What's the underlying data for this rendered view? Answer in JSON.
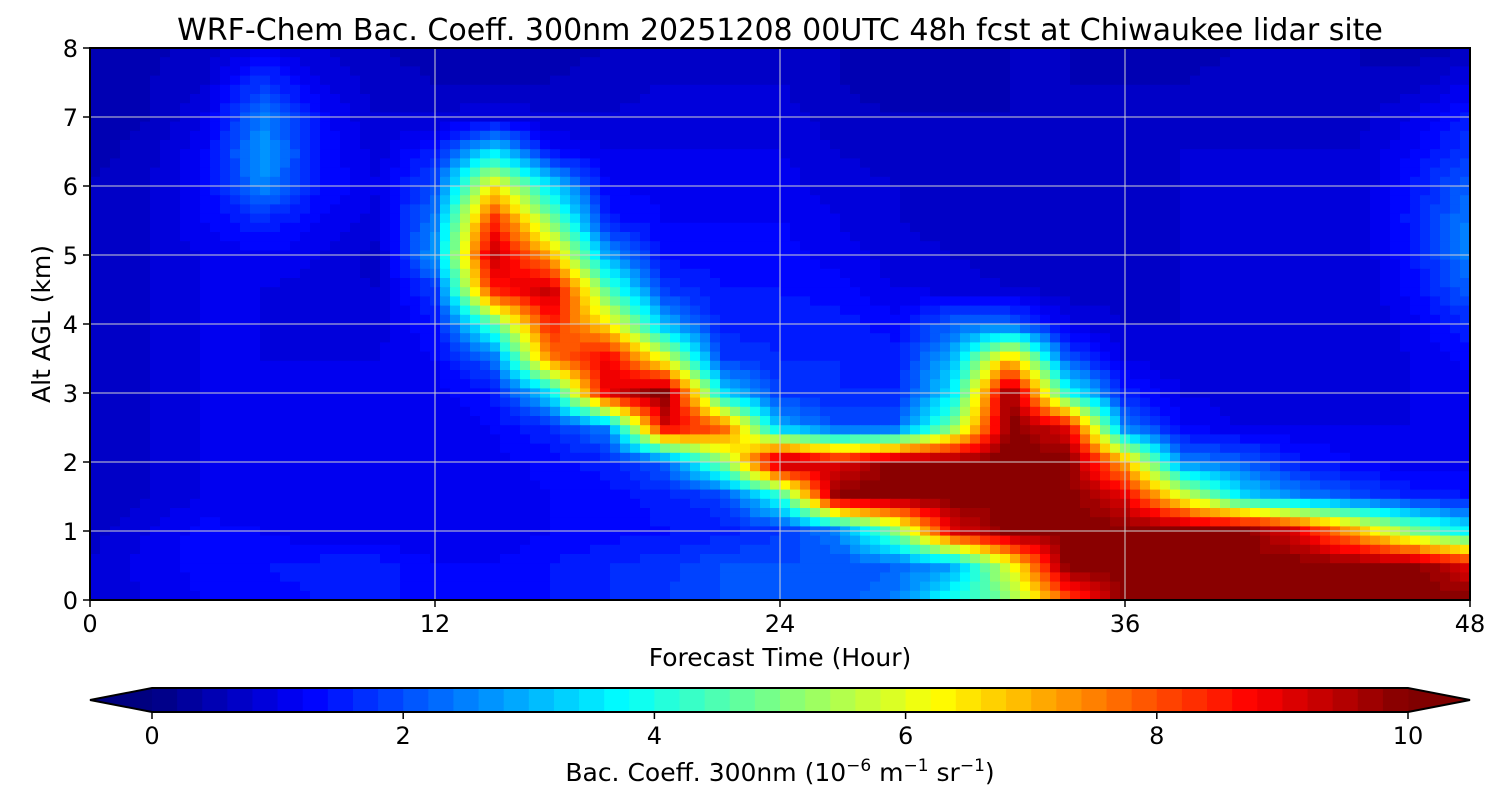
{
  "chart_data": {
    "type": "heatmap",
    "title": "WRF-Chem Bac. Coeff. 300nm  20251208 00UTC 48h fcst at Chiwaukee lidar site",
    "xlabel": "Forecast Time (Hour)",
    "ylabel": "Alt AGL (km)",
    "xlim": [
      0,
      48
    ],
    "ylim": [
      0,
      8
    ],
    "x_ticks": [
      "0",
      "12",
      "24",
      "36",
      "48"
    ],
    "y_ticks": [
      "0",
      "1",
      "2",
      "3",
      "4",
      "5",
      "6",
      "7",
      "8"
    ],
    "grid": true,
    "colormap": "jet",
    "colorbar": {
      "label_prefix": "Bac. Coeff. 300nm  (10",
      "label_exp1": "−6",
      "label_mid": " m",
      "label_exp2": "−1",
      "label_mid2": " sr",
      "label_exp3": "−1",
      "label_suffix": ")",
      "range": [
        0,
        10
      ],
      "levels": 50,
      "extend": "both",
      "ticks": [
        "0",
        "2",
        "4",
        "6",
        "8",
        "10"
      ]
    },
    "x_hours": [
      0,
      2,
      4,
      6,
      8,
      10,
      12,
      14,
      16,
      18,
      20,
      22,
      24,
      26,
      28,
      30,
      32,
      34,
      36,
      38,
      40,
      42,
      44,
      46,
      48
    ],
    "z_km_top_to_bottom": [
      8,
      7.5,
      7,
      6.5,
      6,
      5.5,
      5,
      4.5,
      4,
      3.5,
      3,
      2.5,
      2,
      1.5,
      1,
      0.5,
      0
    ],
    "values": [
      [
        0.5,
        0.5,
        0.7,
        1,
        0.8,
        0.6,
        0.5,
        0.5,
        0.5,
        0.6,
        0.7,
        0.7,
        0.8,
        0.6,
        0.5,
        0.5,
        0.6,
        0.6,
        0.5,
        0.5,
        0.6,
        0.6,
        0.6,
        0.5,
        0.6
      ],
      [
        0.5,
        0.6,
        0.8,
        1.8,
        1.0,
        0.7,
        0.6,
        0.6,
        0.6,
        0.7,
        0.8,
        0.8,
        0.8,
        0.6,
        0.5,
        0.5,
        0.6,
        0.6,
        0.6,
        0.6,
        0.7,
        0.7,
        0.6,
        0.7,
        1.0
      ],
      [
        0.5,
        0.6,
        1.0,
        2.5,
        1.3,
        0.8,
        0.8,
        1.0,
        0.8,
        0.8,
        0.9,
        0.9,
        0.9,
        0.7,
        0.6,
        0.6,
        0.6,
        0.6,
        0.6,
        0.7,
        0.8,
        0.7,
        0.7,
        1.0,
        1.5
      ],
      [
        0.5,
        0.7,
        1.2,
        2.8,
        1.4,
        0.9,
        1.5,
        3.5,
        1.3,
        1.0,
        1.0,
        1.0,
        1.0,
        0.8,
        0.7,
        0.6,
        0.6,
        0.6,
        0.7,
        0.8,
        0.8,
        0.8,
        0.8,
        1.2,
        1.8
      ],
      [
        0.6,
        0.8,
        1.2,
        2.6,
        1.4,
        1.0,
        2.0,
        6.5,
        3.5,
        1.2,
        1.1,
        1.1,
        1.1,
        0.9,
        0.8,
        0.6,
        0.6,
        0.6,
        0.7,
        0.8,
        0.8,
        0.8,
        0.8,
        1.4,
        2.2
      ],
      [
        0.6,
        0.8,
        1.2,
        1.6,
        1.2,
        0.9,
        2.5,
        8.5,
        5.0,
        1.5,
        1.2,
        1.2,
        1.2,
        1.0,
        0.8,
        0.7,
        0.6,
        0.6,
        0.7,
        0.8,
        0.8,
        0.8,
        0.8,
        1.5,
        2.5
      ],
      [
        0.6,
        0.8,
        1.0,
        1.2,
        1.0,
        0.7,
        2.8,
        9.5,
        7.0,
        2.8,
        1.3,
        1.3,
        1.3,
        1.1,
        0.9,
        0.8,
        0.7,
        0.7,
        0.7,
        0.8,
        0.8,
        0.8,
        0.8,
        1.4,
        2.5
      ],
      [
        0.6,
        0.8,
        1.0,
        1.0,
        0.9,
        0.8,
        1.8,
        8.5,
        9.5,
        4.5,
        1.8,
        1.4,
        1.4,
        1.3,
        1.0,
        0.9,
        0.8,
        0.7,
        0.7,
        0.8,
        0.8,
        0.8,
        0.8,
        1.3,
        2.2
      ],
      [
        0.6,
        0.8,
        1.0,
        1.0,
        0.9,
        0.9,
        1.4,
        4.5,
        8.5,
        6.5,
        3.0,
        1.5,
        1.5,
        1.5,
        1.3,
        2.2,
        2.2,
        1.0,
        0.8,
        0.8,
        0.8,
        0.8,
        0.8,
        1.1,
        1.6
      ],
      [
        0.6,
        0.8,
        1.0,
        1.0,
        1.0,
        1.0,
        1.2,
        2.2,
        7.5,
        9.0,
        6.0,
        1.8,
        1.6,
        1.6,
        1.5,
        3.0,
        7.0,
        2.0,
        1.0,
        0.8,
        0.8,
        0.8,
        0.8,
        1.0,
        1.3
      ],
      [
        0.6,
        0.8,
        1.0,
        1.0,
        1.0,
        1.0,
        1.1,
        1.4,
        3.5,
        9.0,
        10,
        3.5,
        1.8,
        1.6,
        1.6,
        3.5,
        10,
        4.0,
        1.5,
        1.0,
        0.9,
        0.9,
        0.9,
        1.0,
        1.1
      ],
      [
        0.6,
        0.8,
        1.0,
        1.0,
        1.0,
        1.0,
        1.0,
        1.2,
        1.6,
        2.5,
        9.0,
        8.0,
        3.0,
        2.0,
        2.0,
        5.0,
        10,
        9.0,
        2.5,
        1.2,
        1.0,
        1.0,
        1.0,
        1.0,
        1.0
      ],
      [
        0.6,
        0.8,
        1.0,
        1.0,
        1.0,
        1.0,
        1.0,
        1.1,
        1.3,
        1.5,
        2.2,
        5.0,
        10,
        9.0,
        10,
        10,
        10,
        10,
        7.0,
        2.5,
        2.2,
        1.5,
        1.2,
        1.1,
        1.1
      ],
      [
        0.6,
        0.8,
        1.0,
        1.0,
        1.0,
        1.0,
        1.0,
        1.0,
        1.2,
        1.3,
        1.5,
        1.8,
        4.0,
        10,
        10,
        10,
        10,
        10,
        9.0,
        6.0,
        3.5,
        2.5,
        2.0,
        1.5,
        1.4
      ],
      [
        0.7,
        1.0,
        1.3,
        1.2,
        1.0,
        1.0,
        1.0,
        1.0,
        1.2,
        1.3,
        1.4,
        1.5,
        1.8,
        2.5,
        5.0,
        9.0,
        10,
        10,
        10,
        10,
        10,
        9.0,
        7.0,
        5.0,
        3.5
      ],
      [
        0.8,
        1.1,
        1.3,
        1.4,
        1.5,
        1.5,
        1.2,
        1.2,
        1.4,
        1.6,
        1.7,
        2.0,
        2.0,
        2.0,
        2.2,
        2.8,
        6.0,
        10,
        10,
        10,
        10,
        10,
        10,
        10,
        9.0
      ],
      [
        0.8,
        1.0,
        1.2,
        1.3,
        1.4,
        1.5,
        1.2,
        1.2,
        1.4,
        1.6,
        1.8,
        2.0,
        2.0,
        2.0,
        2.5,
        4.0,
        5.0,
        8.0,
        10,
        10,
        10,
        10,
        10,
        10,
        10
      ]
    ]
  }
}
